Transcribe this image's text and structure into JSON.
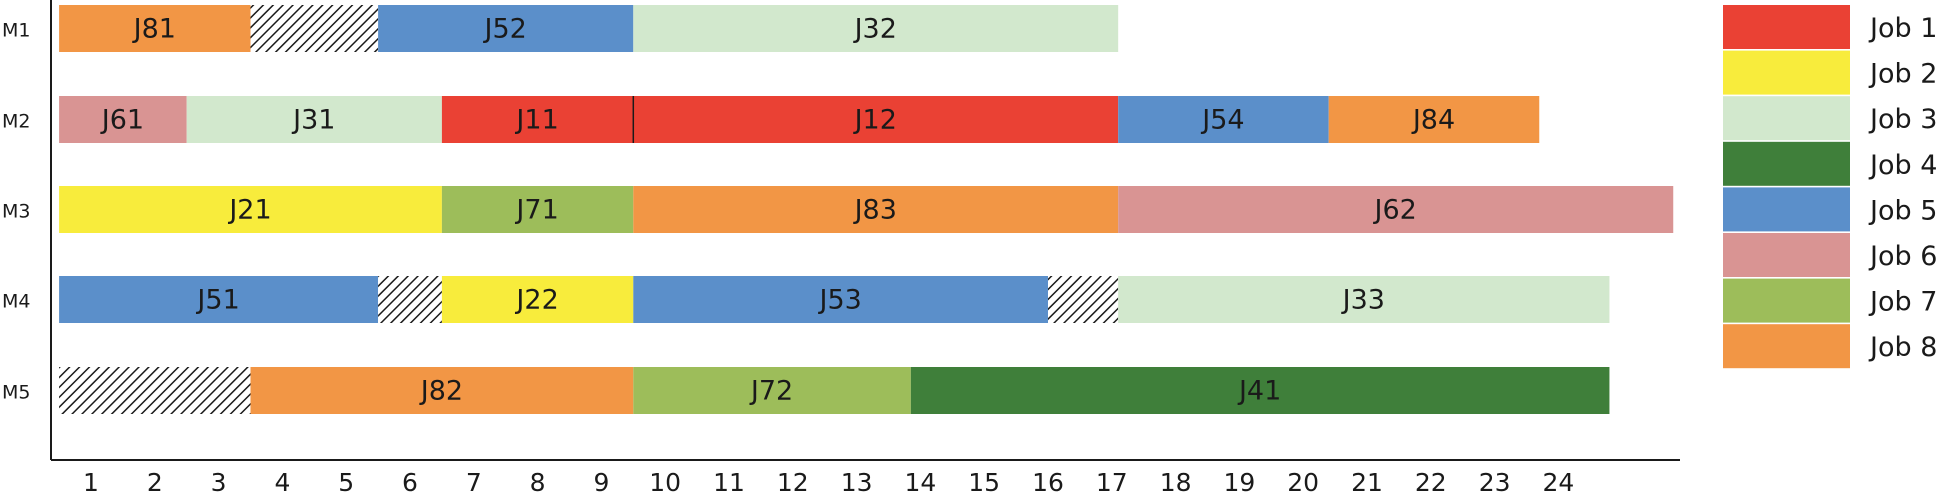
{
  "chart_data": {
    "type": "gantt",
    "title": "",
    "xlabel": "",
    "ylabel": "",
    "xlim": [
      0.5,
      24.5
    ],
    "xticks": [
      1,
      2,
      3,
      4,
      5,
      6,
      7,
      8,
      9,
      10,
      11,
      12,
      13,
      14,
      15,
      16,
      17,
      18,
      19,
      20,
      21,
      22,
      23,
      24
    ],
    "machines": [
      "M1",
      "M2",
      "M3",
      "M4",
      "M5"
    ],
    "colors": {
      "Job 1": "#ea4134",
      "Job 2": "#f8ec3c",
      "Job 3": "#d2e8cd",
      "Job 4": "#3f7f3a",
      "Job 5": "#5b8fca",
      "Job 6": "#d99493",
      "Job 7": "#9dbd5a",
      "Job 8": "#f29645",
      "idle": "hatched"
    },
    "legend": [
      "Job 1",
      "Job 2",
      "Job 3",
      "Job 4",
      "Job 5",
      "Job 6",
      "Job 7",
      "Job 8"
    ],
    "legend_position": "right",
    "tasks": [
      {
        "machine": "M1",
        "label": "J81",
        "job": "Job 8",
        "start": 0.5,
        "end": 3.5
      },
      {
        "machine": "M1",
        "label": "",
        "job": "idle",
        "start": 3.5,
        "end": 5.5
      },
      {
        "machine": "M1",
        "label": "J52",
        "job": "Job 5",
        "start": 5.5,
        "end": 9.5
      },
      {
        "machine": "M1",
        "label": "J32",
        "job": "Job 3",
        "start": 9.5,
        "end": 17.1
      },
      {
        "machine": "M2",
        "label": "J61",
        "job": "Job 6",
        "start": 0.5,
        "end": 2.5
      },
      {
        "machine": "M2",
        "label": "J31",
        "job": "Job 3",
        "start": 2.5,
        "end": 6.5
      },
      {
        "machine": "M2",
        "label": "J11",
        "job": "Job 1",
        "start": 6.5,
        "end": 9.5
      },
      {
        "machine": "M2",
        "label": "J12",
        "job": "Job 1",
        "start": 9.5,
        "end": 17.1
      },
      {
        "machine": "M2",
        "label": "J54",
        "job": "Job 5",
        "start": 17.1,
        "end": 20.4
      },
      {
        "machine": "M2",
        "label": "J84",
        "job": "Job 8",
        "start": 20.4,
        "end": 23.7
      },
      {
        "machine": "M3",
        "label": "J21",
        "job": "Job 2",
        "start": 0.5,
        "end": 6.5
      },
      {
        "machine": "M3",
        "label": "J71",
        "job": "Job 7",
        "start": 6.5,
        "end": 9.5
      },
      {
        "machine": "M3",
        "label": "J83",
        "job": "Job 8",
        "start": 9.5,
        "end": 17.1
      },
      {
        "machine": "M3",
        "label": "J62",
        "job": "Job 6",
        "start": 17.1,
        "end": 25.8
      },
      {
        "machine": "M4",
        "label": "J51",
        "job": "Job 5",
        "start": 0.5,
        "end": 5.5
      },
      {
        "machine": "M4",
        "label": "",
        "job": "idle",
        "start": 5.5,
        "end": 6.5
      },
      {
        "machine": "M4",
        "label": "J22",
        "job": "Job 2",
        "start": 6.5,
        "end": 9.5
      },
      {
        "machine": "M4",
        "label": "J53",
        "job": "Job 5",
        "start": 9.5,
        "end": 16.0
      },
      {
        "machine": "M4",
        "label": "",
        "job": "idle",
        "start": 16.0,
        "end": 17.1
      },
      {
        "machine": "M4",
        "label": "J33",
        "job": "Job 3",
        "start": 17.1,
        "end": 24.8
      },
      {
        "machine": "M5",
        "label": "",
        "job": "idle",
        "start": 0.5,
        "end": 3.5
      },
      {
        "machine": "M5",
        "label": "J82",
        "job": "Job 8",
        "start": 3.5,
        "end": 9.5
      },
      {
        "machine": "M5",
        "label": "J72",
        "job": "Job 7",
        "start": 9.5,
        "end": 13.85
      },
      {
        "machine": "M5",
        "label": "J41",
        "job": "Job 4",
        "start": 13.85,
        "end": 24.8
      }
    ]
  }
}
